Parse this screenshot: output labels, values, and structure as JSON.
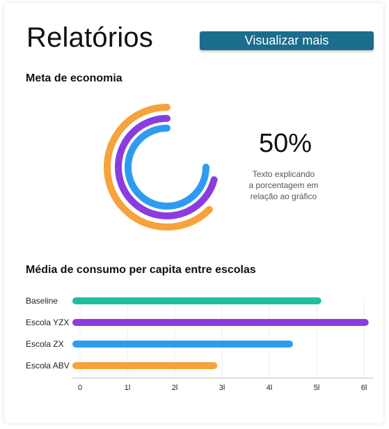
{
  "header": {
    "title": "Relatórios",
    "button_label": "Visualizar mais"
  },
  "economia": {
    "section_title": "Meta de economia",
    "percentage": "50%",
    "description_lines": [
      "Texto explicando",
      "a porcentagem em",
      "relação ao gráfico"
    ],
    "rings": [
      {
        "color": "#f7a23b"
      },
      {
        "color": "#8a3ddf"
      },
      {
        "color": "#2d9cf0"
      }
    ]
  },
  "consumo": {
    "section_title": "Média de consumo per capita entre escolas"
  },
  "chart_data": {
    "type": "bar",
    "orientation": "horizontal",
    "categories": [
      "Baseline",
      "Escola YZX",
      "Escola ZX",
      "Escola ABV"
    ],
    "values": [
      5.1,
      6.1,
      4.5,
      2.9
    ],
    "colors": [
      "#1fbf9b",
      "#8a3ddf",
      "#2d9cf0",
      "#f7a23b"
    ],
    "x_tick_labels": [
      "0",
      "1l",
      "2l",
      "3l",
      "4l",
      "5l",
      "6l"
    ],
    "xlim": [
      0,
      6
    ],
    "grid": true,
    "title": "",
    "xlabel": "",
    "ylabel": ""
  }
}
